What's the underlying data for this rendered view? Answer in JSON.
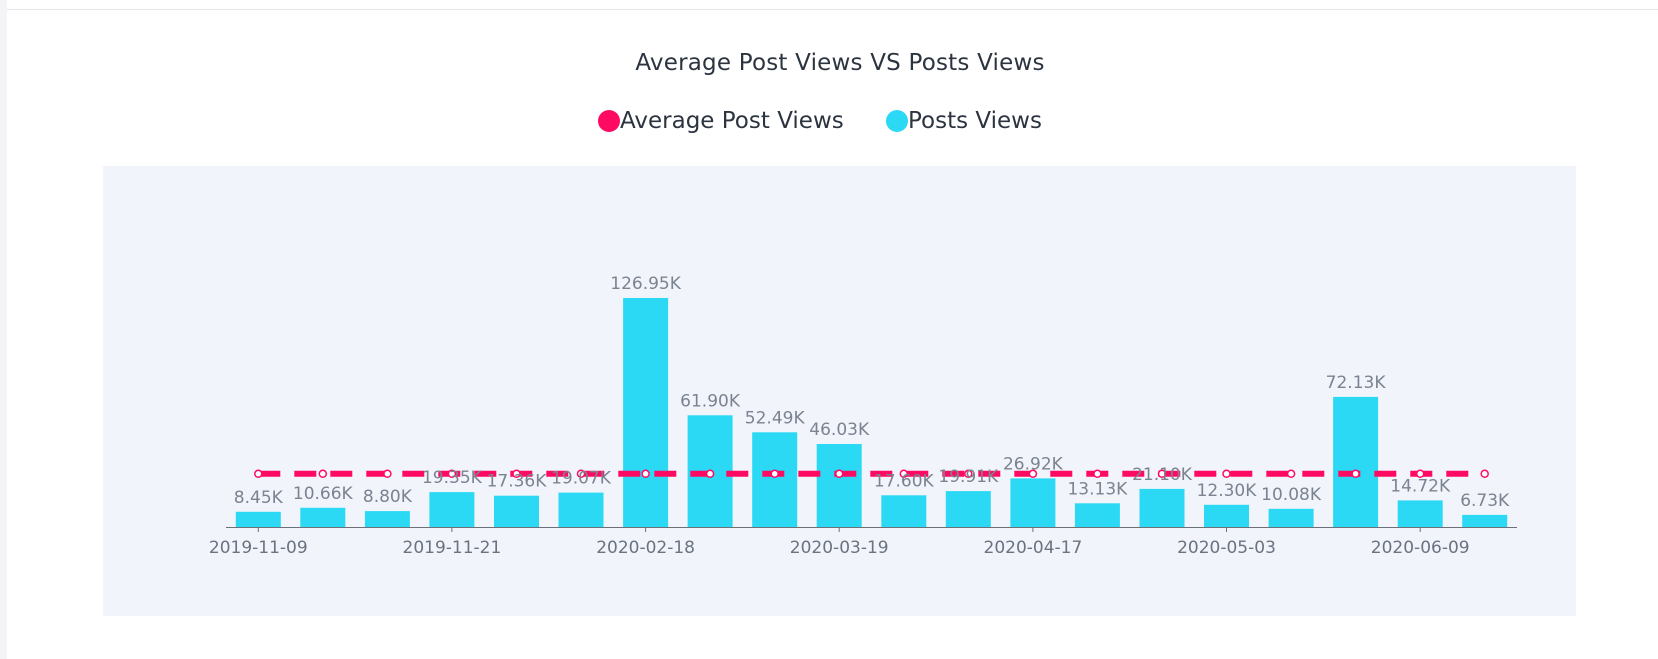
{
  "chart_data": {
    "type": "bar",
    "title": "Average Post Views VS Posts Views",
    "legend": [
      {
        "name": "Average Post Views",
        "color": "#ff0a63",
        "kind": "line"
      },
      {
        "name": "Posts Views",
        "color": "#2bd9f5",
        "kind": "bar"
      }
    ],
    "series": [
      {
        "name": "Posts Views",
        "values": [
          8.45,
          10.66,
          8.8,
          19.35,
          17.36,
          19.07,
          126.95,
          61.9,
          52.49,
          46.03,
          17.6,
          19.91,
          26.92,
          13.13,
          21.1,
          12.3,
          10.08,
          72.13,
          14.72,
          6.73
        ],
        "labels": [
          "8.45K",
          "10.66K",
          "8.80K",
          "19.35K",
          "17.36K",
          "19.07K",
          "126.95K",
          "61.90K",
          "52.49K",
          "46.03K",
          "17.60K",
          "19.91K",
          "26.92K",
          "13.13K",
          "21.10K",
          "12.30K",
          "10.08K",
          "72.13K",
          "14.72K",
          "6.73K"
        ]
      },
      {
        "name": "Average Post Views",
        "values": [
          29.5,
          29.5,
          29.5,
          29.5,
          29.5,
          29.5,
          29.5,
          29.5,
          29.5,
          29.5,
          29.5,
          29.5,
          29.5,
          29.5,
          29.5,
          29.5,
          29.5,
          29.5,
          29.5,
          29.5
        ]
      }
    ],
    "xticks": [
      "2019-11-09",
      "2019-11-21",
      "2020-02-18",
      "2020-03-19",
      "2020-04-17",
      "2020-05-03",
      "2020-06-09"
    ],
    "xtick_indices": [
      0,
      3,
      6,
      9,
      12,
      15,
      18
    ],
    "ylim": [
      0,
      135
    ]
  }
}
